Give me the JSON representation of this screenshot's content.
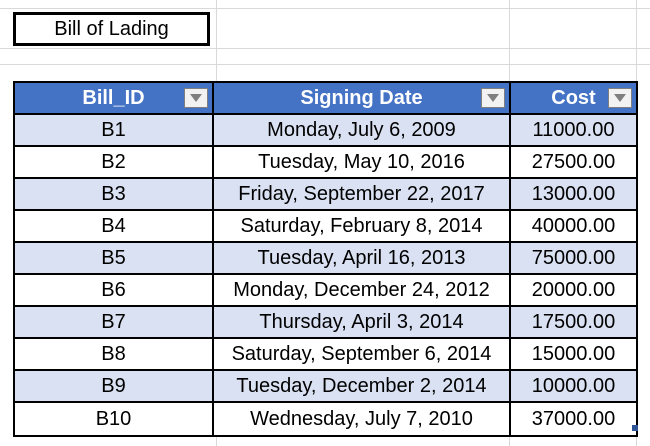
{
  "title": "Bill of Lading",
  "table": {
    "headers": [
      "Bill_ID",
      "Signing Date",
      "Cost"
    ],
    "rows": [
      [
        "B1",
        "Monday, July 6, 2009",
        "11000.00"
      ],
      [
        "B2",
        "Tuesday, May 10, 2016",
        "27500.00"
      ],
      [
        "B3",
        "Friday, September 22, 2017",
        "13000.00"
      ],
      [
        "B4",
        "Saturday, February 8, 2014",
        "40000.00"
      ],
      [
        "B5",
        "Tuesday, April 16, 2013",
        "75000.00"
      ],
      [
        "B6",
        "Monday, December 24, 2012",
        "20000.00"
      ],
      [
        "B7",
        "Thursday, April 3, 2014",
        "17500.00"
      ],
      [
        "B8",
        "Saturday, September 6, 2014",
        "15000.00"
      ],
      [
        "B9",
        "Tuesday, December 2, 2014",
        "10000.00"
      ],
      [
        "B10",
        "Wednesday, July 7, 2010",
        "37000.00"
      ]
    ]
  },
  "colors": {
    "header_bg": "#4472c4",
    "band_bg": "#d9e1f2",
    "gridline": "#d9d9d9"
  },
  "icons": {
    "filter": "dropdown-arrow-icon"
  }
}
